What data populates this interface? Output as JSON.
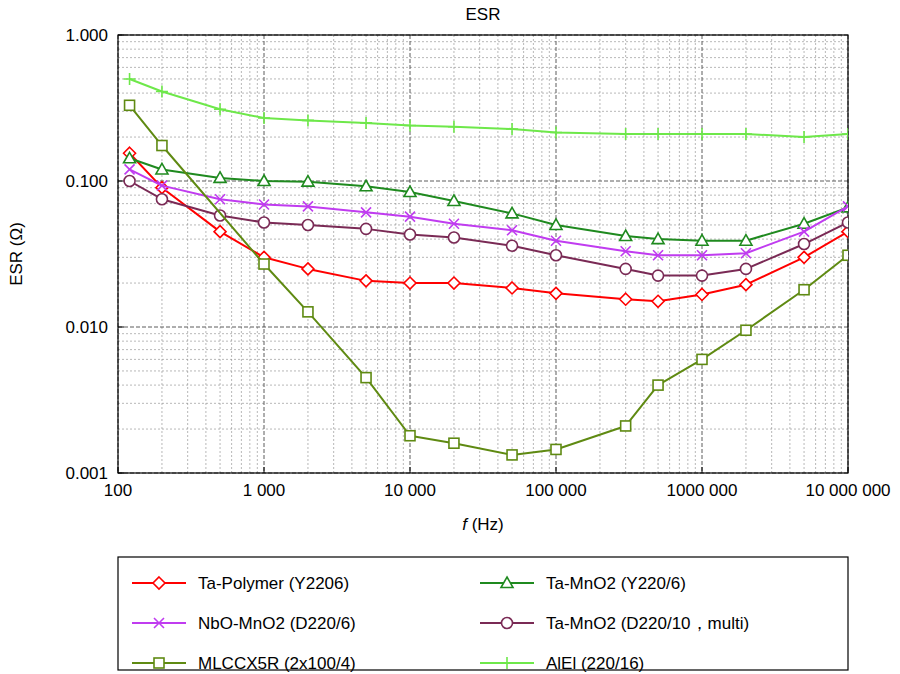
{
  "chart_data": {
    "type": "line",
    "title": "ESR",
    "x_label": "f (Hz)",
    "y_label": "ESR (Ω)",
    "log": true,
    "grid": true,
    "legend": "bottom",
    "xlim": [
      100,
      10000000
    ],
    "ylim": [
      0.001,
      1
    ],
    "xticks": [
      100,
      {
        "value": 1000,
        "label": "1 000"
      },
      {
        "value": 10000,
        "label": "10 000"
      },
      {
        "value": 100000,
        "label": "100 000"
      },
      {
        "value": 1000000,
        "label": "1000 000"
      },
      {
        "value": 10000000,
        "label": "10 000 000"
      }
    ],
    "yticks": [
      {
        "value": 0.001,
        "label": "0.001"
      },
      {
        "value": 0.01,
        "label": "0.010"
      },
      {
        "value": 0.1,
        "label": "0.100"
      },
      {
        "value": 1,
        "label": "1.000"
      }
    ],
    "series": [
      {
        "name": "Ta-Polymer (Y2206)",
        "color": "#ff0000",
        "marker": "diamond",
        "x": [
          120,
          200,
          500,
          1000,
          2000,
          5000,
          10000,
          20000,
          50000,
          100000,
          300000,
          500000,
          1000000,
          2000000,
          5000000,
          10000000
        ],
        "values": [
          0.155,
          0.09,
          0.045,
          0.03,
          0.025,
          0.0207,
          0.02,
          0.02,
          0.0185,
          0.017,
          0.0155,
          0.015,
          0.0167,
          0.0195,
          0.03,
          0.045
        ]
      },
      {
        "name": "Ta-MnO2 (Y220/6)",
        "color": "#1f8a1f",
        "marker": "triangle",
        "x": [
          120,
          200,
          500,
          1000,
          2000,
          5000,
          10000,
          20000,
          50000,
          100000,
          300000,
          500000,
          1000000,
          2000000,
          5000000,
          10000000
        ],
        "values": [
          0.143,
          0.12,
          0.105,
          0.1,
          0.099,
          0.092,
          0.084,
          0.073,
          0.06,
          0.05,
          0.042,
          0.04,
          0.039,
          0.039,
          0.051,
          0.066
        ]
      },
      {
        "name": "NbO-MnO2 (D220/6)",
        "color": "#c03cf0",
        "marker": "x",
        "x": [
          120,
          200,
          500,
          1000,
          2000,
          5000,
          10000,
          20000,
          50000,
          100000,
          300000,
          500000,
          1000000,
          2000000,
          5000000,
          10000000
        ],
        "values": [
          0.12,
          0.093,
          0.075,
          0.069,
          0.067,
          0.061,
          0.057,
          0.051,
          0.046,
          0.039,
          0.033,
          0.031,
          0.031,
          0.032,
          0.045,
          0.067
        ]
      },
      {
        "name": "Ta-MnO2 (D220/10，multi)",
        "color": "#7a2a55",
        "marker": "circle",
        "x": [
          120,
          200,
          500,
          1000,
          2000,
          5000,
          10000,
          20000,
          50000,
          100000,
          300000,
          500000,
          1000000,
          2000000,
          5000000,
          10000000
        ],
        "values": [
          0.1,
          0.075,
          0.058,
          0.052,
          0.05,
          0.047,
          0.043,
          0.041,
          0.036,
          0.031,
          0.025,
          0.0225,
          0.0225,
          0.025,
          0.037,
          0.052
        ]
      },
      {
        "name": "MLCCX5R (2x100/4)",
        "color": "#5f8a12",
        "marker": "square",
        "x": [
          120,
          200,
          1000,
          2000,
          5000,
          10000,
          20000,
          50000,
          100000,
          300000,
          500000,
          1000000,
          2000000,
          5000000,
          10000000
        ],
        "values": [
          0.33,
          0.175,
          0.027,
          0.0127,
          0.0045,
          0.0018,
          0.0016,
          0.00133,
          0.00145,
          0.0021,
          0.004,
          0.006,
          0.0095,
          0.018,
          0.031
        ]
      },
      {
        "name": "AlEl (220/16)",
        "color": "#6ee84a",
        "marker": "plus",
        "x": [
          120,
          200,
          500,
          1000,
          2000,
          5000,
          10000,
          20000,
          50000,
          100000,
          300000,
          500000,
          1000000,
          2000000,
          5000000,
          10000000
        ],
        "values": [
          0.5,
          0.41,
          0.31,
          0.27,
          0.26,
          0.25,
          0.24,
          0.235,
          0.227,
          0.215,
          0.21,
          0.21,
          0.21,
          0.21,
          0.2,
          0.21
        ]
      }
    ]
  }
}
